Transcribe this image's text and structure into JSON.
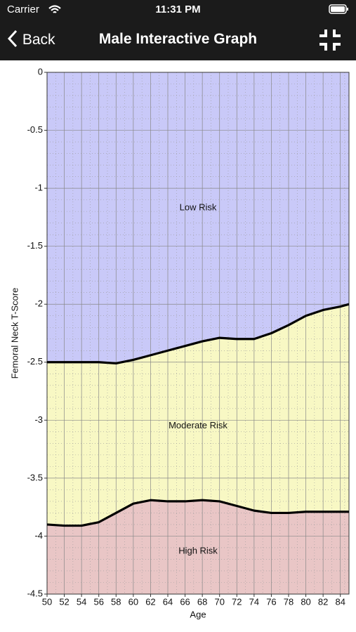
{
  "status_bar": {
    "carrier": "Carrier",
    "time": "11:31 PM"
  },
  "nav_bar": {
    "back": "Back",
    "title": "Male Interactive Graph"
  },
  "chart_data": {
    "type": "line",
    "x_label": "Age",
    "y_label": "Femoral Neck T-Score",
    "x": [
      50,
      52,
      54,
      56,
      58,
      60,
      62,
      64,
      66,
      68,
      70,
      72,
      74,
      76,
      78,
      80,
      82,
      84,
      85
    ],
    "series": [
      {
        "color": "#000000",
        "values": [
          -2.5,
          -2.5,
          -2.5,
          -2.5,
          -2.51,
          -2.48,
          -2.44,
          -2.4,
          -2.36,
          -2.32,
          -2.29,
          -2.3,
          -2.3,
          -2.25,
          -2.18,
          -2.1,
          -2.05,
          -2.02,
          -2.0
        ]
      },
      {
        "color": "#000000",
        "values": [
          -3.9,
          -3.91,
          -3.91,
          -3.88,
          -3.8,
          -3.72,
          -3.69,
          -3.7,
          -3.7,
          -3.69,
          -3.7,
          -3.74,
          -3.78,
          -3.8,
          -3.8,
          -3.79,
          -3.79,
          -3.79,
          -3.79
        ]
      }
    ],
    "zones": [
      {
        "label": "Low Risk",
        "color": "#c9c9f8"
      },
      {
        "label": "Moderate Risk",
        "color": "#f8f8c4"
      },
      {
        "label": "High Risk",
        "color": "#e9c6c6"
      }
    ],
    "xlim": [
      50,
      85
    ],
    "xticks": [
      50,
      52,
      54,
      56,
      58,
      60,
      62,
      64,
      66,
      68,
      70,
      72,
      74,
      76,
      78,
      80,
      82,
      84
    ],
    "ylim": [
      -4.5,
      0
    ],
    "yticks": [
      0,
      -0.5,
      -1,
      -1.5,
      -2,
      -2.5,
      -3,
      -3.5,
      -4,
      -4.5
    ],
    "grid": true
  }
}
